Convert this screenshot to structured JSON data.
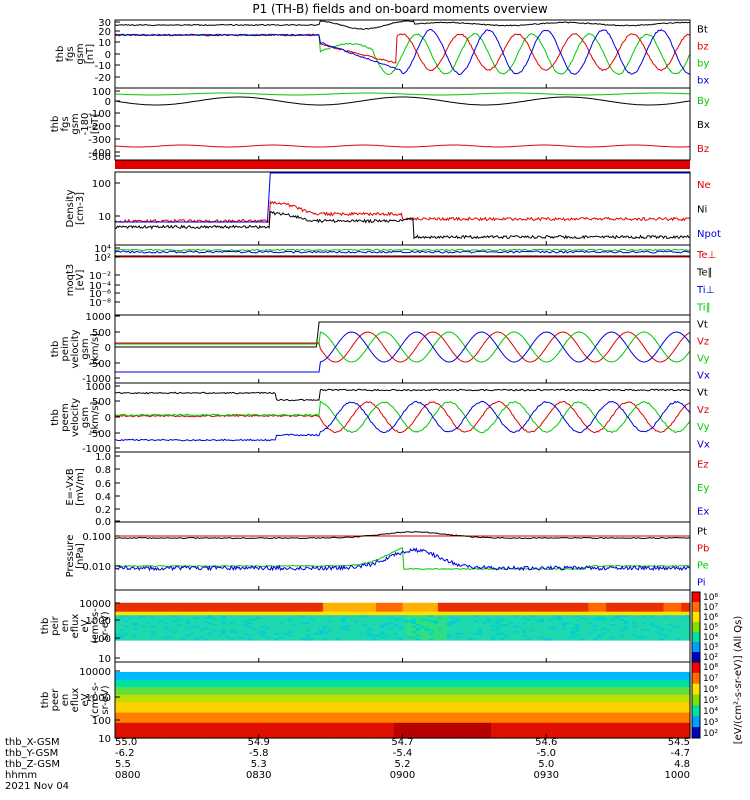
{
  "title": "P1 (TH-B) fields and on-board moments overview",
  "colors": {
    "black": "#000000",
    "red": "#e00000",
    "green": "#00c800",
    "blue": "#0000e0"
  },
  "panels": [
    {
      "id": "fgs-b",
      "ylabel": [
        "thb",
        "fgs",
        "gsm",
        "[nT]"
      ],
      "ticks": [
        "30",
        "20",
        "10",
        "0",
        "-10",
        "-20"
      ],
      "legend": [
        {
          "label": "Bt",
          "color": "black"
        },
        {
          "label": "bz",
          "color": "red"
        },
        {
          "label": "by",
          "color": "green"
        },
        {
          "label": "bx",
          "color": "blue"
        }
      ]
    },
    {
      "id": "fgs-b-zoom",
      "ylabel": [
        "thb",
        "fgs",
        "gsm",
        "-180",
        "[nT]"
      ],
      "ticks": [
        "100",
        "0",
        "-100",
        "-200",
        "-300",
        "-400",
        "-500"
      ],
      "legend": [
        {
          "label": "By",
          "color": "green"
        },
        {
          "label": "Bx",
          "color": "black"
        },
        {
          "label": "Bz",
          "color": "red"
        }
      ]
    },
    {
      "id": "density",
      "ylabel": [
        "Density",
        "[cm-3]"
      ],
      "ticks": [
        "100",
        "10"
      ],
      "legend": [
        {
          "label": "Ne",
          "color": "red"
        },
        {
          "label": "Ni",
          "color": "black"
        },
        {
          "label": "Npot",
          "color": "blue"
        }
      ]
    },
    {
      "id": "temperature",
      "ylabel": [
        "moqt3",
        "[eV]"
      ],
      "ticks": [
        "10⁴",
        "10²",
        "10⁻²",
        "10⁻⁴",
        "10⁻⁶",
        "10⁻⁸"
      ],
      "legend": [
        {
          "label": "Te⊥",
          "color": "red"
        },
        {
          "label": "Te∥",
          "color": "black"
        },
        {
          "label": "Ti⊥",
          "color": "blue"
        },
        {
          "label": "Ti∥",
          "color": "green"
        }
      ]
    },
    {
      "id": "ion-velocity",
      "ylabel": [
        "thb",
        "peim",
        "velocity",
        "gsm",
        "[km/s]"
      ],
      "ticks": [
        "1000",
        "500",
        "0",
        "-500",
        "-1000"
      ],
      "legend": [
        {
          "label": "Vt",
          "color": "black"
        },
        {
          "label": "Vz",
          "color": "red"
        },
        {
          "label": "Vy",
          "color": "green"
        },
        {
          "label": "Vx",
          "color": "blue"
        }
      ]
    },
    {
      "id": "electron-velocity",
      "ylabel": [
        "thb",
        "peem",
        "velocity",
        "gsm",
        "[km/s]"
      ],
      "ticks": [
        "1000",
        "500",
        "0",
        "-500",
        "-1000"
      ],
      "legend": [
        {
          "label": "Vt",
          "color": "black"
        },
        {
          "label": "Vz",
          "color": "red"
        },
        {
          "label": "Vy",
          "color": "green"
        },
        {
          "label": "Vx",
          "color": "blue"
        }
      ]
    },
    {
      "id": "efield",
      "ylabel": [
        "E=-VxB",
        "[mV/m]"
      ],
      "ticks": [
        "1.0",
        "0.8",
        "0.6",
        "0.4",
        "0.2",
        "0.0"
      ],
      "legend": [
        {
          "label": "Ez",
          "color": "red"
        },
        {
          "label": "Ey",
          "color": "green"
        },
        {
          "label": "Ex",
          "color": "blue"
        }
      ]
    },
    {
      "id": "pressure",
      "ylabel": [
        "Pressure",
        "[nPa]"
      ],
      "ticks": [
        "0.100",
        "0.010"
      ],
      "legend": [
        {
          "label": "Pt",
          "color": "black"
        },
        {
          "label": "Pb",
          "color": "red"
        },
        {
          "label": "Pe",
          "color": "green"
        },
        {
          "label": "Pi",
          "color": "blue"
        }
      ]
    },
    {
      "id": "ion-spectrogram",
      "ylabel": [
        "thb",
        "peir",
        "en",
        "eflux",
        "eV",
        "(cm²-s-",
        "sr-eV)"
      ],
      "ticks": [
        "10000",
        "1000",
        "100",
        "10"
      ]
    },
    {
      "id": "electron-spectrogram",
      "ylabel": [
        "thb",
        "peer",
        "en",
        "eflux",
        "eV",
        "(cm²-s-",
        "sr-eV)"
      ],
      "ticks": [
        "10000",
        "1000",
        "100",
        "10"
      ]
    }
  ],
  "colorbars": [
    {
      "ticks": [
        "10⁸",
        "10⁷",
        "10⁶",
        "10⁵",
        "10⁴",
        "10³",
        "10²"
      ]
    },
    {
      "ticks": [
        "10⁸",
        "10⁷",
        "10⁶",
        "10⁵",
        "10⁴",
        "10³",
        "10²"
      ]
    }
  ],
  "colorbar_label": "[eV/(cm²-s-sr-eV)] (All Qs)",
  "xaxis": {
    "row_labels": [
      "thb_X-GSM",
      "thb_Y-GSM",
      "thb_Z-GSM",
      "hhmm",
      "2021 Nov 04"
    ],
    "columns": [
      [
        "55.0",
        "-6.2",
        "5.5",
        "0800"
      ],
      [
        "54.9",
        "-5.8",
        "5.3",
        "0830"
      ],
      [
        "54.7",
        "-5.4",
        "5.2",
        "0900"
      ],
      [
        "54.6",
        "-5.0",
        "5.0",
        "0930"
      ],
      [
        "54.5",
        "-4.7",
        "4.8",
        "1000"
      ]
    ]
  },
  "chart_data": {
    "type": "line",
    "title": "P1 (TH-B) fields and on-board moments overview",
    "x": [
      "0800",
      "0830",
      "0900",
      "0930",
      "1000"
    ],
    "x_range": [
      "0800",
      "1000"
    ],
    "series": [
      {
        "name": "Bt",
        "panel": "fgs-b",
        "color": "black",
        "values": [
          22,
          22,
          24,
          22,
          22
        ]
      },
      {
        "name": "bz",
        "panel": "fgs-b",
        "color": "red",
        "values": [
          -3,
          -16,
          3,
          -15,
          10
        ]
      },
      {
        "name": "by",
        "panel": "fgs-b",
        "color": "green",
        "values": [
          -5,
          -5,
          5,
          20,
          -10
        ]
      },
      {
        "name": "bx",
        "panel": "fgs-b",
        "color": "blue",
        "values": [
          17,
          12,
          -18,
          -20,
          15
        ]
      },
      {
        "name": "Ne",
        "panel": "density",
        "color": "red",
        "values": [
          7,
          8,
          25,
          8,
          10
        ]
      },
      {
        "name": "Ni",
        "panel": "density",
        "color": "black",
        "values": [
          5,
          3,
          15,
          3,
          3
        ]
      },
      {
        "name": "Vt",
        "panel": "ion-velocity",
        "color": "black",
        "values": [
          0,
          800,
          800,
          800,
          800
        ]
      },
      {
        "name": "Vz",
        "panel": "ion-velocity",
        "color": "red",
        "values": [
          50,
          0,
          -600,
          0,
          600
        ]
      },
      {
        "name": "Vy",
        "panel": "ion-velocity",
        "color": "green",
        "values": [
          50,
          600,
          0,
          -600,
          0
        ]
      },
      {
        "name": "Vx",
        "panel": "ion-velocity",
        "color": "blue",
        "values": [
          -700,
          -800,
          400,
          -500,
          600
        ]
      },
      {
        "name": "Pt",
        "panel": "pressure",
        "color": "black",
        "values": [
          0.2,
          0.2,
          0.25,
          0.2,
          0.2
        ]
      },
      {
        "name": "Pe",
        "panel": "pressure",
        "color": "green",
        "values": [
          0.02,
          0.02,
          0.06,
          0.02,
          0.02
        ]
      },
      {
        "name": "Pi",
        "panel": "pressure",
        "color": "blue",
        "values": [
          0.012,
          0.012,
          0.05,
          0.01,
          0.02
        ]
      }
    ]
  }
}
